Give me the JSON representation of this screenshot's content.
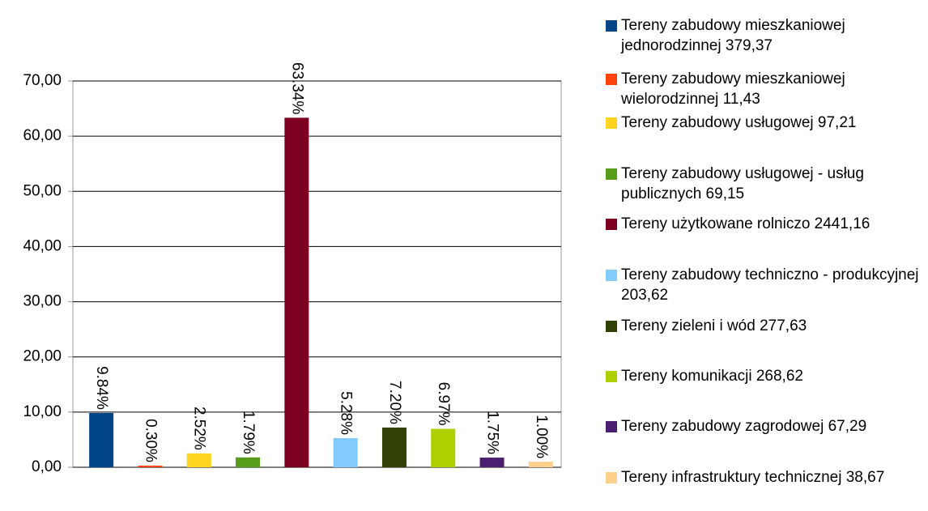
{
  "chart_data": {
    "type": "bar",
    "categories": [
      "Tereny zabudowy mieszkaniowej jednorodzinnej 379,37",
      "Tereny zabudowy mieszkaniowej wielorodzinnej 11,43",
      "Tereny zabudowy usługowej 97,21",
      "Tereny zabudowy usługowej - usług publicznych 69,15",
      "Tereny użytkowane rolniczo 2441,16",
      "Tereny zabudowy techniczno - produkcyjnej 203,62",
      "Tereny zieleni i wód 277,63",
      "Tereny komunikacji 268,62",
      "Tereny zabudowy zagrodowej 67,29",
      "Tereny infrastruktury technicznej 38,67"
    ],
    "values": [
      9.84,
      0.3,
      2.52,
      1.79,
      63.34,
      5.28,
      7.2,
      6.97,
      1.75,
      1.0
    ],
    "value_labels": [
      "9.84%",
      "0.30%",
      "2.52%",
      "1.79%",
      "63.34%",
      "5.28%",
      "7.20%",
      "6.97%",
      "1.75%",
      "1.00%"
    ],
    "colors": [
      "#004586",
      "#ff420e",
      "#ffd320",
      "#579d1c",
      "#7e0021",
      "#83caff",
      "#314004",
      "#aecf00",
      "#4b1f6f",
      "#ffd08c"
    ],
    "ylim": [
      0,
      70
    ],
    "yticks": [
      {
        "value": 0,
        "label": "0,00"
      },
      {
        "value": 10,
        "label": "10,00"
      },
      {
        "value": 20,
        "label": "20,00"
      },
      {
        "value": 30,
        "label": "30,00"
      },
      {
        "value": 40,
        "label": "40,00"
      },
      {
        "value": 50,
        "label": "50,00"
      },
      {
        "value": 60,
        "label": "60,00"
      },
      {
        "value": 70,
        "label": "70,00"
      }
    ],
    "grid": true,
    "legend": "right"
  }
}
